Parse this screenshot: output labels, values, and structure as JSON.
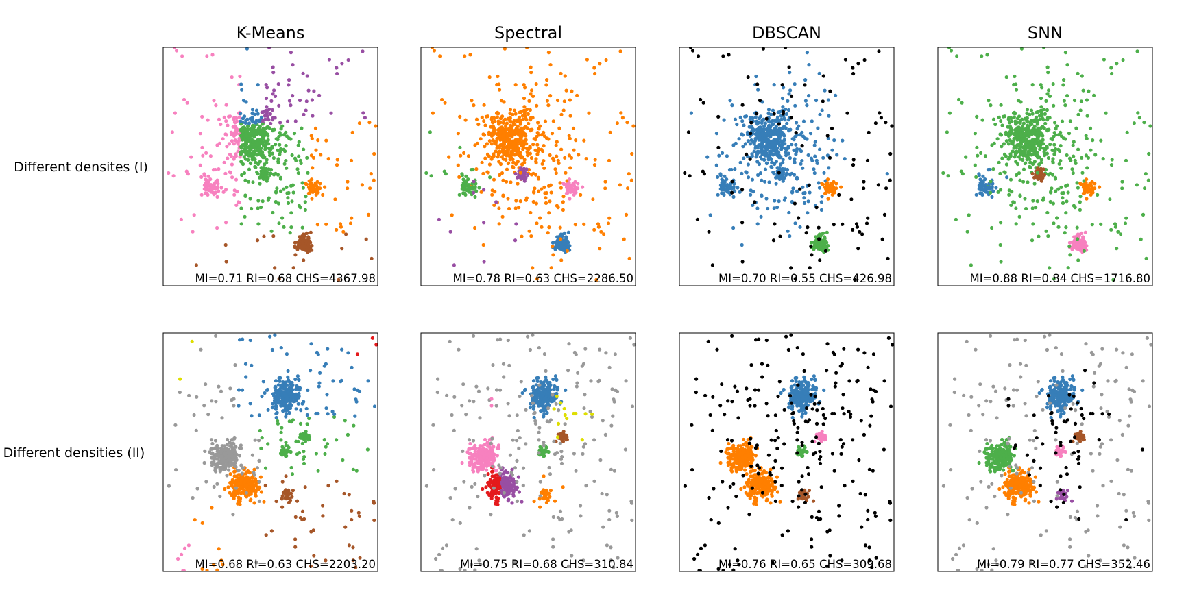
{
  "chart_data": {
    "type": "scatter",
    "layout": "grid",
    "columns": [
      "K-Means",
      "Spectral",
      "DBSCAN",
      "SNN"
    ],
    "rows": [
      "Different densites (I)",
      "Different densities (II)"
    ],
    "palette": {
      "blue": "#377eb8",
      "orange": "#ff7f00",
      "green": "#4daf4a",
      "pink": "#f781bf",
      "brown": "#a65628",
      "purple": "#984ea3",
      "gray": "#999999",
      "red": "#e41a1c",
      "yellow": "#dede00",
      "black": "#000000"
    },
    "axes": {
      "xlim": [
        0,
        100
      ],
      "ylim": [
        0,
        100
      ],
      "ticks": "none"
    },
    "datasets": [
      {
        "name": "Different densites (I)",
        "seed": 11,
        "clusters": [
          {
            "id": "A",
            "cx": 42,
            "cy": 38,
            "sd": 5,
            "n": 300
          },
          {
            "id": "B",
            "cx": 48,
            "cy": 45,
            "sd": 15,
            "n": 240
          },
          {
            "id": "C",
            "cx": 22,
            "cy": 58,
            "sd": 2.2,
            "n": 50
          },
          {
            "id": "D",
            "cx": 47,
            "cy": 53,
            "sd": 1.3,
            "n": 40
          },
          {
            "id": "E",
            "cx": 70,
            "cy": 59,
            "sd": 1.5,
            "n": 40
          },
          {
            "id": "F",
            "cx": 66,
            "cy": 82,
            "sd": 1.8,
            "n": 80
          },
          {
            "id": "N",
            "cx": 50,
            "cy": 50,
            "sd": 0,
            "n": 110,
            "uniform": true
          }
        ],
        "results": [
          {
            "method": "K-Means",
            "metrics": "MI=0.71 RI=0.68 CHS=4367.98",
            "colorRule": "kmeans_I"
          },
          {
            "method": "Spectral",
            "metrics": "MI=0.78 RI=0.63 CHS=2286.50",
            "colors": {
              "A": "orange",
              "B": "orange",
              "C": "green",
              "D": "purple",
              "E": "pink",
              "F": "blue",
              "N": "mix_spectral_I"
            }
          },
          {
            "method": "DBSCAN",
            "metrics": "MI=0.70 RI=0.55 CHS=426.98",
            "colors": {
              "A": "blue",
              "B": "blue",
              "C": "blue",
              "D": "blue",
              "E": "orange",
              "F": "green",
              "N": "black"
            }
          },
          {
            "method": "SNN",
            "metrics": "MI=0.88 RI=0.84 CHS=1716.80",
            "colors": {
              "A": "green",
              "B": "green",
              "C": "blue",
              "D": "brown",
              "E": "orange",
              "F": "pink",
              "N": "green"
            }
          }
        ]
      },
      {
        "name": "Different densities (II)",
        "seed": 29,
        "clusters": [
          {
            "id": "A",
            "cx": 57,
            "cy": 26,
            "sd": 3.2,
            "n": 200
          },
          {
            "id": "B",
            "cx": 29,
            "cy": 52,
            "sd": 3.2,
            "n": 200
          },
          {
            "id": "C",
            "cx": 38,
            "cy": 64,
            "sd": 3.4,
            "n": 220
          },
          {
            "id": "D",
            "cx": 66,
            "cy": 43,
            "sd": 1.1,
            "n": 30
          },
          {
            "id": "E",
            "cx": 57,
            "cy": 50,
            "sd": 1.1,
            "n": 30
          },
          {
            "id": "F",
            "cx": 58,
            "cy": 68,
            "sd": 1.1,
            "n": 30
          },
          {
            "id": "G",
            "cx": 50,
            "cy": 50,
            "sd": 0,
            "n": 170,
            "uniform": true
          },
          {
            "id": "H",
            "cx": 55,
            "cy": 45,
            "sd": 14,
            "n": 60
          }
        ],
        "results": [
          {
            "method": "K-Means",
            "metrics": "MI=0.68 RI=0.63 CHS=2203.20",
            "colorRule": "kmeans_II"
          },
          {
            "method": "Spectral",
            "metrics": "MI=0.75 RI=0.68 CHS=310.84",
            "colorRule": "spectral_II"
          },
          {
            "method": "DBSCAN",
            "metrics": "MI=0.76 RI=0.65 CHS=309.68",
            "colors": {
              "A": "blue",
              "B": "orange",
              "C": "orange",
              "D": "pink",
              "E": "green",
              "F": "brown",
              "G": "black",
              "H": "black"
            }
          },
          {
            "method": "SNN",
            "metrics": "MI=0.79 RI=0.77 CHS=352.46",
            "colors": {
              "A": "blue",
              "B": "green",
              "C": "orange",
              "D": "brown",
              "E": "pink",
              "F": "purple",
              "G": "gray",
              "H": "black"
            }
          }
        ]
      }
    ]
  }
}
